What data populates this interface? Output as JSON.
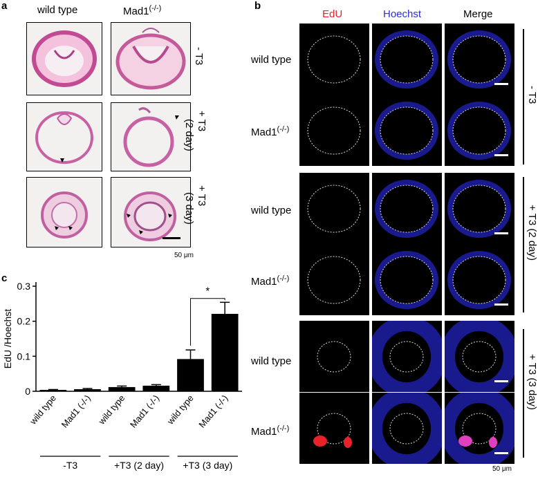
{
  "panel_a": {
    "label": "a",
    "col_headers": [
      "wild type",
      "Mad1"
    ],
    "col_sup": "(-/-)",
    "row_labels": [
      {
        "line1": "- T3",
        "line2": ""
      },
      {
        "line1": "+ T3",
        "line2": "(2 day)"
      },
      {
        "line1": "+ T3",
        "line2": "(3 day)"
      }
    ],
    "scale_label": "50 μm"
  },
  "panel_b": {
    "label": "b",
    "col_headers": [
      "EdU",
      "Hoechst",
      "Merge"
    ],
    "col_colors": [
      "#e8222a",
      "#2d2de0",
      "#000000"
    ],
    "row_labels": [
      "wild type",
      "Mad1",
      "wild type",
      "Mad1",
      "wild type",
      "Mad1"
    ],
    "row_sup": "(-/-)",
    "group_labels": [
      "- T3",
      "+ T3 (2 day)",
      "+ T3 (3 day)"
    ],
    "scale_label": "50 μm"
  },
  "panel_c": {
    "label": "c",
    "significance": "*",
    "group_labels": [
      "-T3",
      "+T3 (2 day)",
      "+T3 (3 day)"
    ]
  },
  "chart_data": {
    "type": "bar",
    "ylabel": "EdU /Hoechst",
    "xlabel": "",
    "ylim": [
      0,
      0.3
    ],
    "yticks": [
      "0",
      "0.1",
      "0.2",
      "0.3"
    ],
    "categories": [
      "wild type",
      "Mad1 (-/-)",
      "wild type",
      "Mad1 (-/-)",
      "wild type",
      "Mad1 (-/-)"
    ],
    "values": [
      0.004,
      0.006,
      0.012,
      0.016,
      0.092,
      0.221
    ],
    "errors": [
      0.001,
      0.002,
      0.003,
      0.003,
      0.026,
      0.033
    ],
    "groups": [
      "-T3",
      "+T3 (2 day)",
      "+T3 (3 day)"
    ]
  }
}
